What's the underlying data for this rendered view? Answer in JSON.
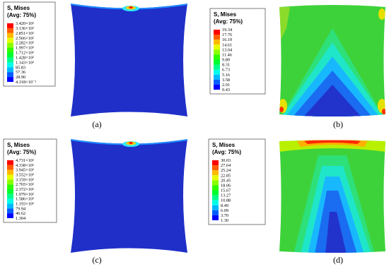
{
  "panels": [
    {
      "label": "(a)",
      "legend": {
        "title": [
          "S, Mises",
          "(Avg: 75%)"
        ],
        "values": [
          "3.420×10²",
          "3.136×10²",
          "2.851×10²",
          "2.566×10²",
          "2.282×10²",
          "1.997×10²",
          "1.712×10²",
          "1.428×10²",
          "1.143×10²",
          "85.83",
          "57.36",
          "28.90",
          "4.318×10⁻¹"
        ]
      }
    },
    {
      "label": "(b)",
      "legend": {
        "title": [
          "S, Mises",
          "(Avg: 75%)"
        ],
        "values": [
          "19.34",
          "17.76",
          "16.19",
          "14.61",
          "13.04",
          "11.46",
          "9.89",
          "8.31",
          "6.73",
          "5.16",
          "3.58",
          "2.01",
          "0.43"
        ]
      }
    },
    {
      "label": "(c)",
      "legend": {
        "title": [
          "S, Mises",
          "(Avg: 75%)"
        ],
        "values": [
          "4.731×10²",
          "4.338×10²",
          "3.945×10²",
          "3.552×10²",
          "3.159×10²",
          "2.765×10²",
          "2.372×10²",
          "1.979×10²",
          "1.586×10²",
          "1.193×10²",
          "79.94",
          "40.62",
          "1.304"
        ]
      }
    },
    {
      "label": "(d)",
      "legend": {
        "title": [
          "S, Mises",
          "(Avg: 75%)"
        ],
        "values": [
          "30.03",
          "27.64",
          "25.24",
          "22.85",
          "20.45",
          "18.06",
          "15.67",
          "13.27",
          "10.88",
          "8.49",
          "6.09",
          "3.70",
          "1.30"
        ]
      }
    }
  ]
}
